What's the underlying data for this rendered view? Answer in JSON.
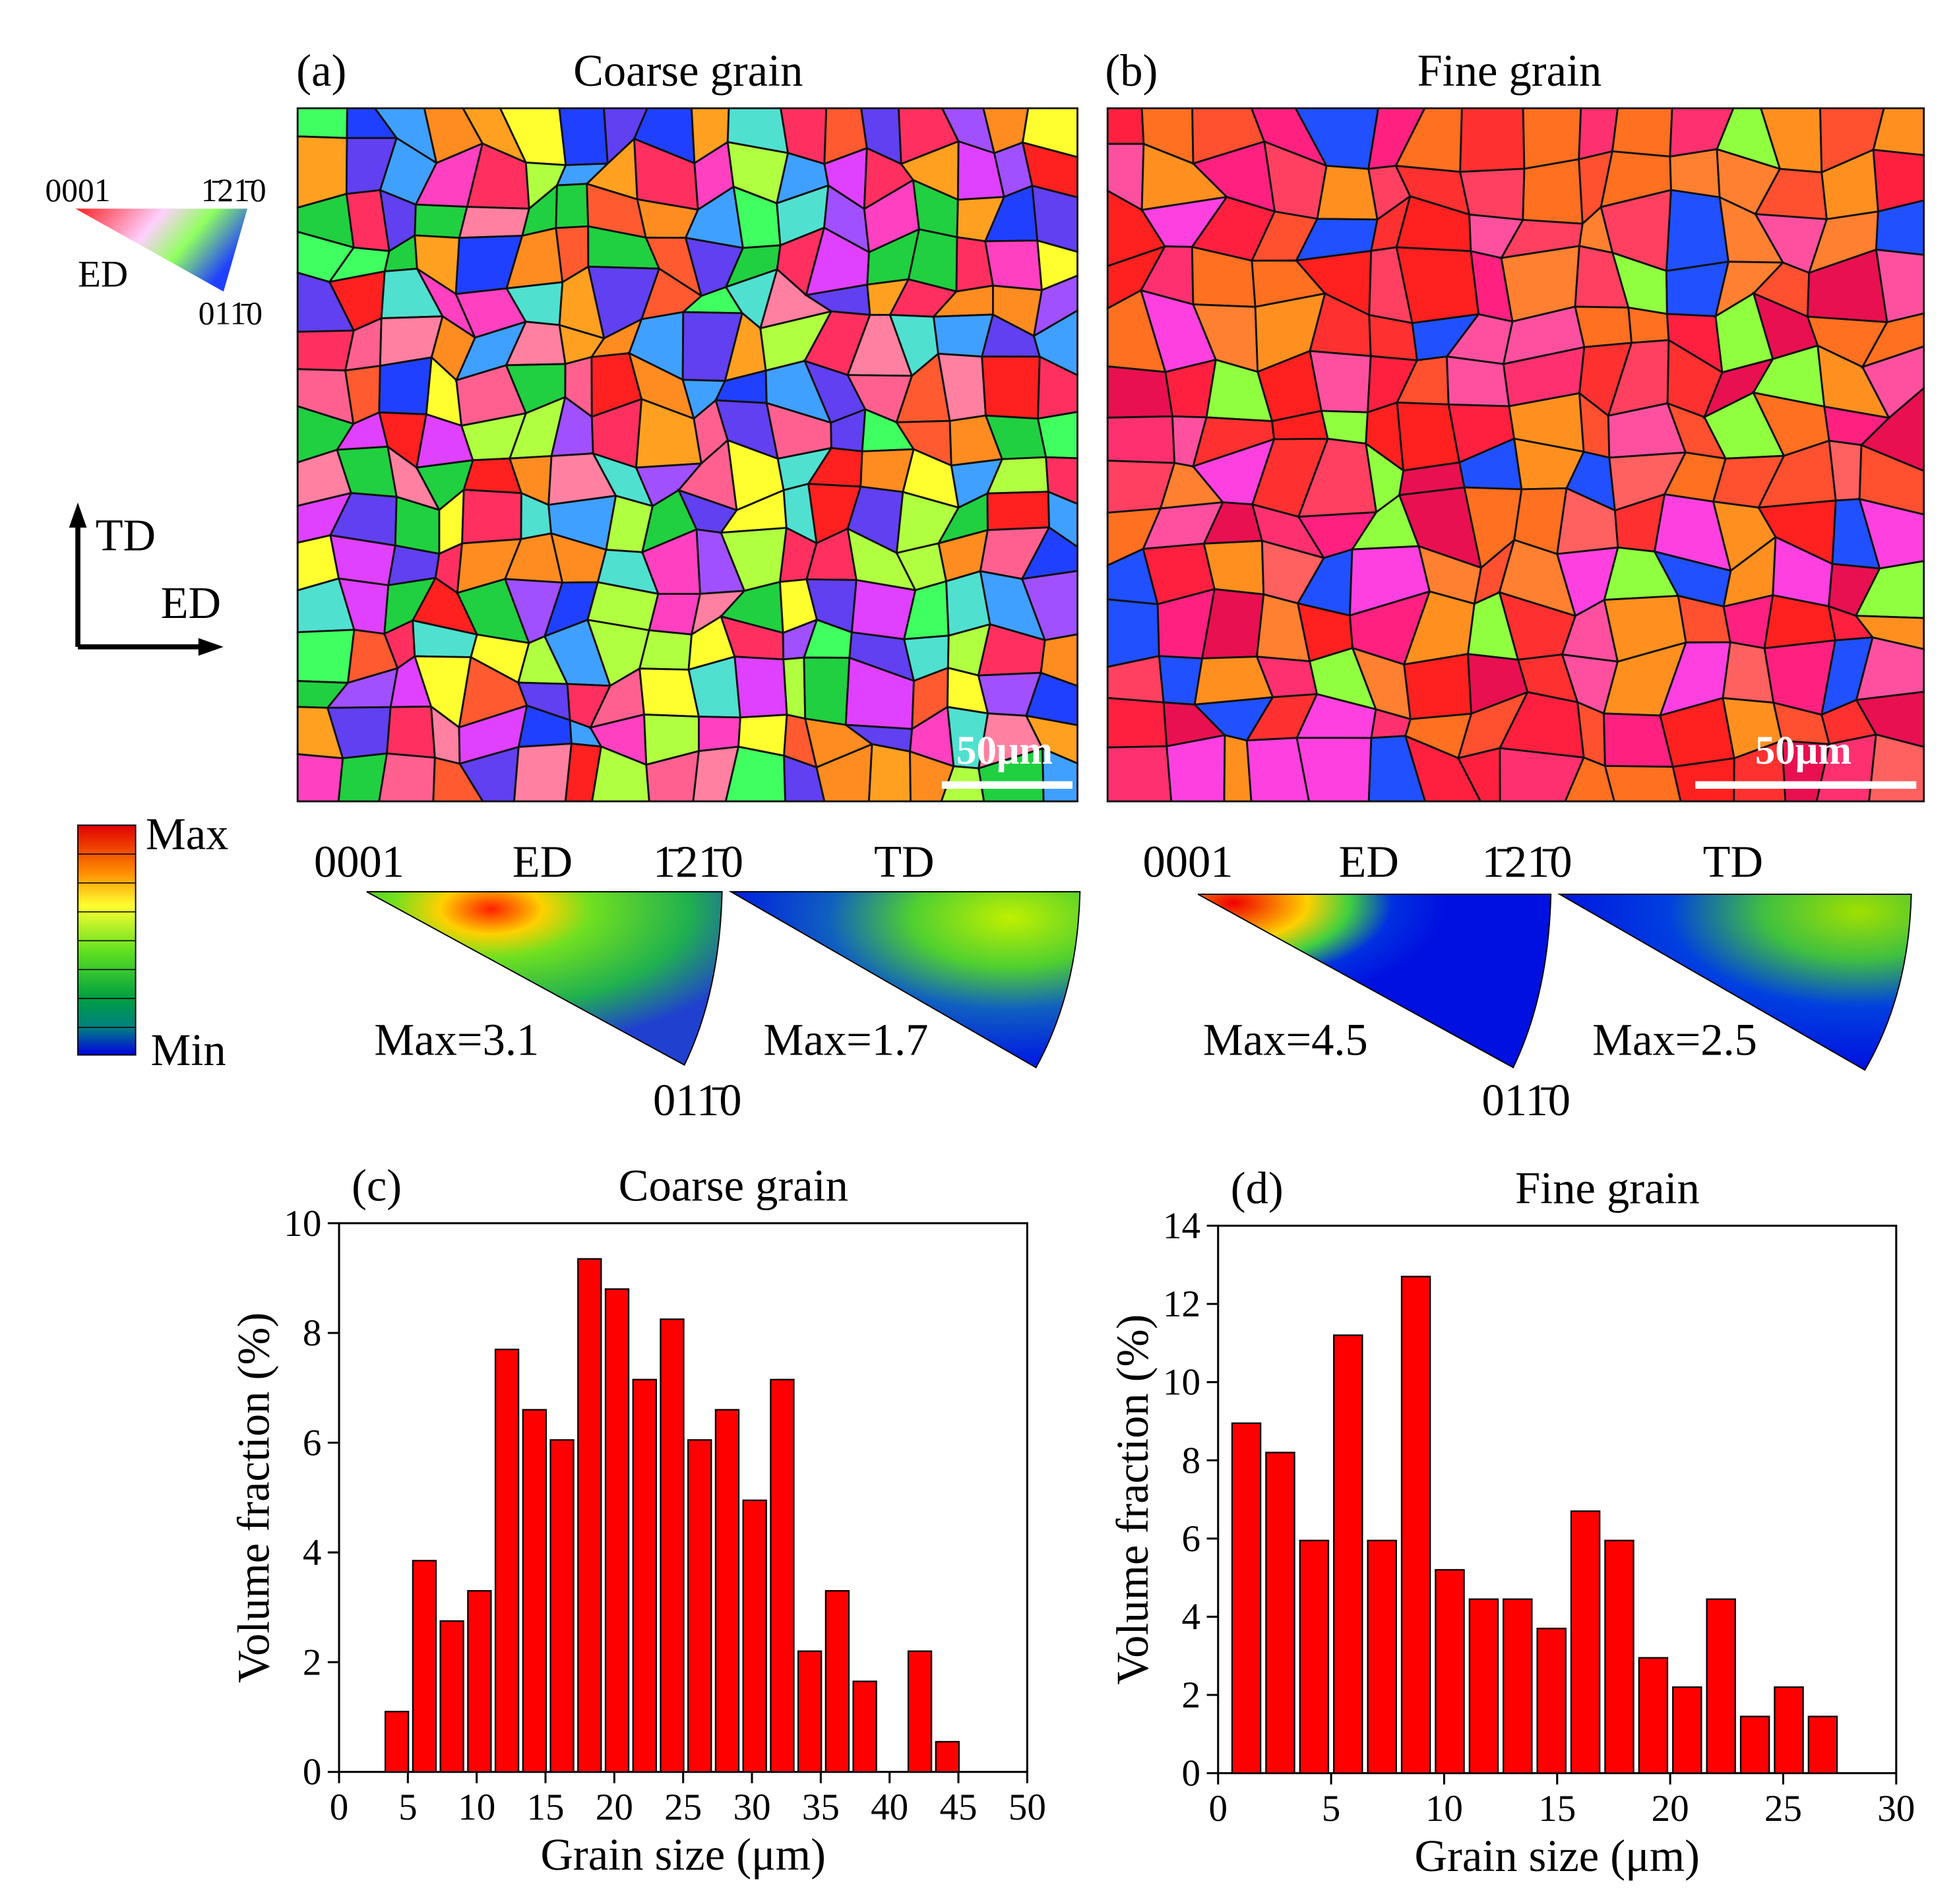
{
  "key": {
    "origin": "0001",
    "corner": "1̄21̄0",
    "bottom": "011̄0",
    "direction": "ED"
  },
  "axes": {
    "vertical": "TD",
    "horizontal": "ED"
  },
  "colorbar": {
    "max": "Max",
    "min": "Min"
  },
  "panels": [
    {
      "label": "(a)",
      "title": "Coarse grain",
      "scale_bar": "50μm",
      "origin": "0001",
      "ed": "ED",
      "corner": "1̄21̄0",
      "td": "TD",
      "bottom": "011̄0",
      "ed_max": "Max=3.1",
      "td_max": "Max=1.7"
    },
    {
      "label": "(b)",
      "title": "Fine grain",
      "scale_bar": "50μm",
      "origin": "0001",
      "ed": "ED",
      "corner": "1̄21̄0",
      "td": "TD",
      "bottom": "011̄0",
      "ed_max": "Max=4.5",
      "td_max": "Max=2.5"
    }
  ],
  "chart_data": [
    {
      "type": "histogram",
      "label": "(c)",
      "title": "Coarse grain",
      "x_label": "Grain size (μm)",
      "y_label": "Volume fraction (%)",
      "color": "#ff0000",
      "bins": [
        3.2,
        5.2,
        7.2,
        9.2,
        11.2,
        13.2,
        15.2,
        17.2,
        19.2,
        21.2,
        23.2,
        25.2,
        27.2,
        29.2,
        31.2,
        33.2,
        35.2,
        37.2,
        39.2,
        41.2,
        43.2,
        45.2
      ],
      "values": [
        1.1,
        3.85,
        2.75,
        3.3,
        7.7,
        6.6,
        6.05,
        9.35,
        8.8,
        7.15,
        8.25,
        6.05,
        6.6,
        4.95,
        7.15,
        2.2,
        3.3,
        1.65,
        0,
        2.2,
        0.55
      ],
      "xlim": [
        0,
        50
      ],
      "xticks": [
        0,
        5,
        10,
        15,
        20,
        25,
        30,
        35,
        40,
        45,
        50
      ],
      "ylim": [
        0,
        10
      ],
      "yticks": [
        0,
        2,
        4,
        6,
        8,
        10
      ]
    },
    {
      "type": "histogram",
      "label": "(d)",
      "title": "Fine grain",
      "x_label": "Grain size (μm)",
      "y_label": "Volume fraction (%)",
      "color": "#ff0000",
      "bins": [
        0.5,
        2,
        3.5,
        5,
        6.5,
        8,
        9.5,
        11,
        12.5,
        14,
        15.5,
        17,
        18.5,
        20,
        21.5,
        23,
        24.5,
        26,
        27.5
      ],
      "values": [
        8.95,
        8.2,
        5.95,
        11.2,
        5.95,
        12.7,
        5.2,
        4.45,
        4.45,
        3.7,
        6.7,
        5.95,
        2.95,
        2.2,
        4.45,
        1.45,
        2.2,
        1.45
      ],
      "xlim": [
        0,
        30
      ],
      "xticks": [
        0,
        5,
        10,
        15,
        20,
        25,
        30
      ],
      "ylim": [
        0,
        14
      ],
      "yticks": [
        0,
        2,
        4,
        6,
        8,
        10,
        12,
        14
      ]
    }
  ]
}
